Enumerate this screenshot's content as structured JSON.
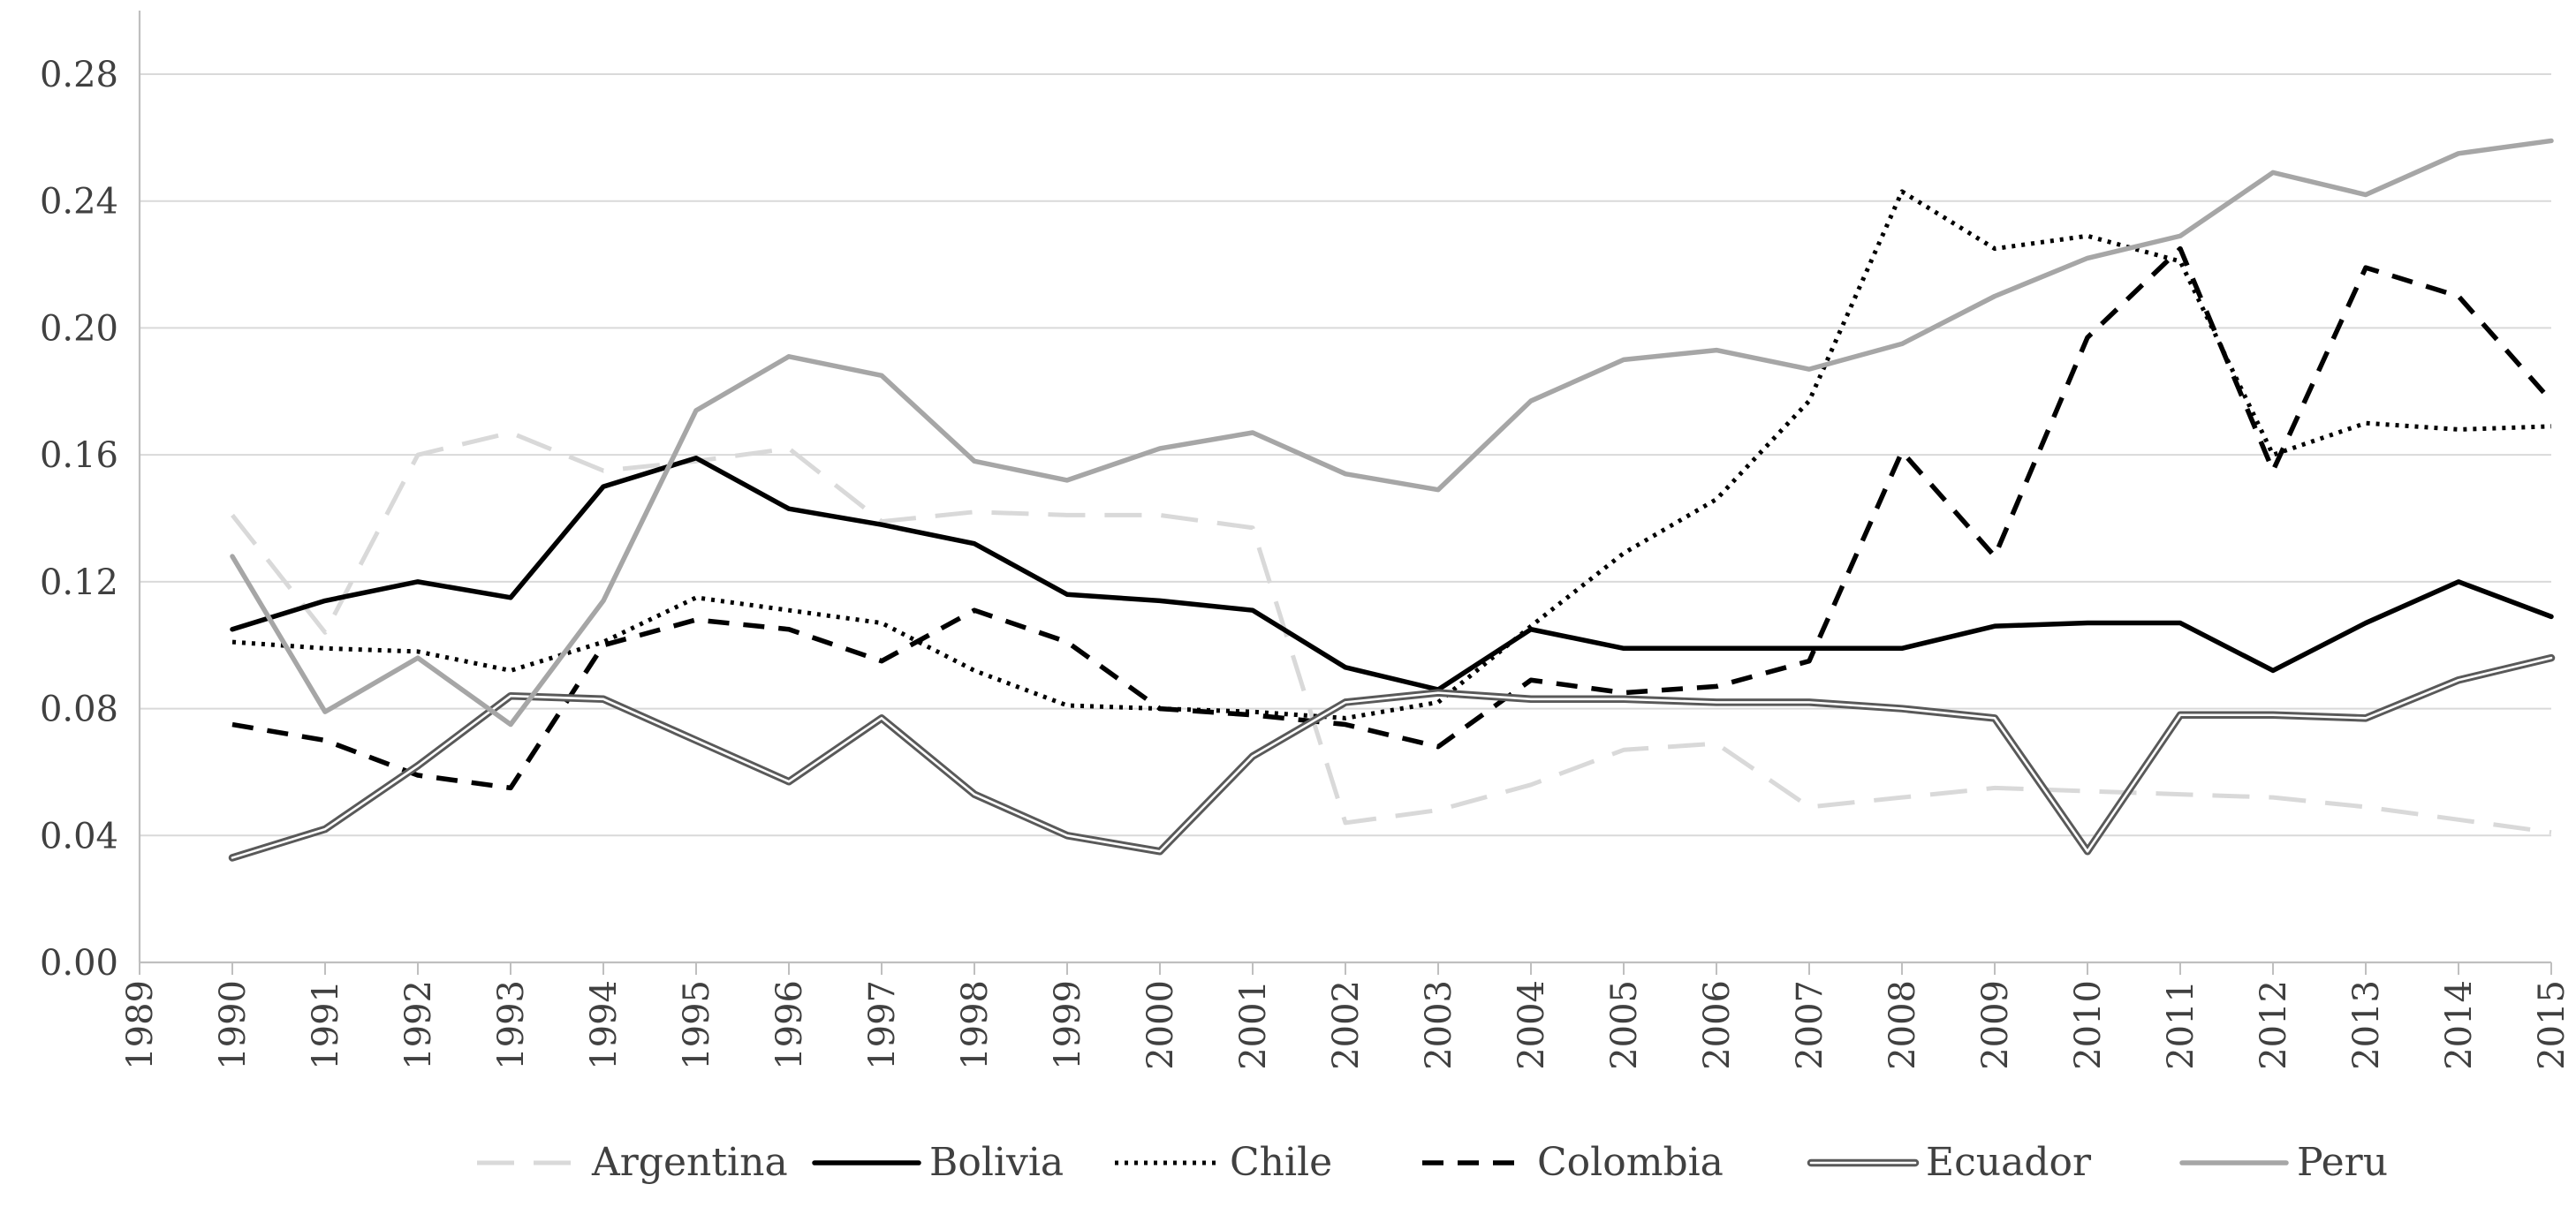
{
  "chart_data": {
    "type": "line",
    "title": "",
    "xlabel": "",
    "ylabel": "",
    "x": [
      1990,
      1991,
      1992,
      1993,
      1994,
      1995,
      1996,
      1997,
      1998,
      1999,
      2000,
      2001,
      2002,
      2003,
      2004,
      2005,
      2006,
      2007,
      2008,
      2009,
      2010,
      2011,
      2012,
      2013,
      2014,
      2015
    ],
    "x_ticks": [
      "1989",
      "1990",
      "1991",
      "1992",
      "1993",
      "1994",
      "1995",
      "1996",
      "1997",
      "1998",
      "1999",
      "2000",
      "2001",
      "2002",
      "2003",
      "2004",
      "2005",
      "2006",
      "2007",
      "2008",
      "2009",
      "2010",
      "2011",
      "2012",
      "2013",
      "2014",
      "2015"
    ],
    "xlim": [
      1989,
      2015
    ],
    "y_ticks": [
      "0.00",
      "0.04",
      "0.08",
      "0.12",
      "0.16",
      "0.20",
      "0.24",
      "0.28"
    ],
    "ylim": [
      0,
      0.28
    ],
    "grid": "horizontal",
    "legend": "bottom",
    "series": [
      {
        "name": "Argentina",
        "style": "long-dash",
        "color": "#d9d9d9",
        "values": [
          0.141,
          0.104,
          0.16,
          0.167,
          0.155,
          0.158,
          0.162,
          0.139,
          0.142,
          0.141,
          0.141,
          0.137,
          0.044,
          0.048,
          0.056,
          0.067,
          0.069,
          0.049,
          0.052,
          0.055,
          0.054,
          0.053,
          0.052,
          0.049,
          0.045,
          0.041
        ]
      },
      {
        "name": "Bolivia",
        "style": "solid",
        "color": "#000000",
        "values": [
          0.105,
          0.114,
          0.12,
          0.115,
          0.15,
          0.159,
          0.143,
          0.138,
          0.132,
          0.116,
          0.114,
          0.111,
          0.093,
          0.086,
          0.105,
          0.099,
          0.099,
          0.099,
          0.099,
          0.106,
          0.107,
          0.107,
          0.092,
          0.107,
          0.12,
          0.109
        ]
      },
      {
        "name": "Chile",
        "style": "dotted",
        "color": "#000000",
        "values": [
          0.101,
          0.099,
          0.098,
          0.092,
          0.101,
          0.115,
          0.111,
          0.107,
          0.092,
          0.081,
          0.08,
          0.079,
          0.077,
          0.082,
          0.106,
          0.129,
          0.146,
          0.177,
          0.243,
          0.225,
          0.229,
          0.221,
          0.16,
          0.17,
          0.168,
          0.169
        ]
      },
      {
        "name": "Colombia",
        "style": "dash",
        "color": "#000000",
        "values": [
          0.075,
          0.07,
          0.059,
          0.055,
          0.1,
          0.108,
          0.105,
          0.095,
          0.111,
          0.101,
          0.08,
          0.078,
          0.075,
          0.068,
          0.089,
          0.085,
          0.087,
          0.095,
          0.161,
          0.128,
          0.197,
          0.225,
          0.155,
          0.219,
          0.21,
          0.177
        ]
      },
      {
        "name": "Ecuador",
        "style": "double",
        "color": "#595959",
        "values": [
          0.033,
          0.042,
          0.062,
          0.084,
          0.083,
          0.07,
          0.057,
          0.077,
          0.053,
          0.04,
          0.035,
          0.065,
          0.082,
          0.085,
          0.083,
          0.083,
          0.082,
          0.082,
          0.08,
          0.077,
          0.035,
          0.078,
          0.078,
          0.077,
          0.089,
          0.096
        ]
      },
      {
        "name": "Peru",
        "style": "solid",
        "color": "#a6a6a6",
        "values": [
          0.128,
          0.079,
          0.096,
          0.075,
          0.114,
          0.174,
          0.191,
          0.185,
          0.158,
          0.152,
          0.162,
          0.167,
          0.154,
          0.149,
          0.177,
          0.19,
          0.193,
          0.187,
          0.195,
          0.21,
          0.222,
          0.229,
          0.249,
          0.242,
          0.255,
          0.259
        ]
      }
    ]
  }
}
